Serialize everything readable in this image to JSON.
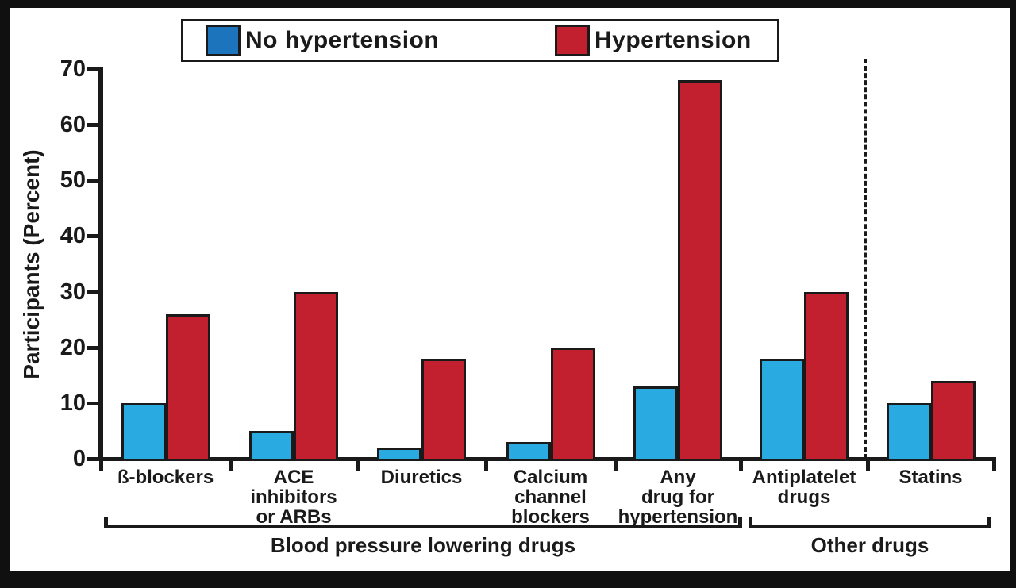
{
  "legend": {
    "items": [
      {
        "label": "No hypertension",
        "swatch_color": "#1C75BC"
      },
      {
        "label": "Hypertension",
        "swatch_color": "#C2202F"
      }
    ]
  },
  "chart_data": {
    "type": "bar",
    "title": "",
    "xlabel": "",
    "ylabel": "Participants (Percent)",
    "ylim": [
      0,
      70
    ],
    "yticks": [
      0,
      10,
      20,
      30,
      40,
      50,
      60,
      70
    ],
    "grid": false,
    "legend_position": "top",
    "categories": [
      "ß-blockers",
      "ACE\ninhibitors\nor ARBs",
      "Diuretics",
      "Calcium\nchannel\nblockers",
      "Any\ndrug for\nhypertension",
      "Antiplatelet\ndrugs",
      "Statins"
    ],
    "series": [
      {
        "name": "No hypertension",
        "color": "#29ABE2",
        "values": [
          10,
          5,
          2,
          3,
          13,
          18,
          10
        ]
      },
      {
        "name": "Hypertension",
        "color": "#C2202F",
        "values": [
          26,
          30,
          18,
          20,
          68,
          30,
          14
        ]
      }
    ],
    "group_brackets": [
      {
        "label": "Blood pressure lowering drugs",
        "from_category": 0,
        "to_category": 4
      },
      {
        "label": "Other drugs",
        "from_category": 5,
        "to_category": 6
      }
    ],
    "dashed_separator_before_category": 6,
    "colors": {
      "axis": "#1A1A1A",
      "frame": "#101010",
      "background": "#FFFFFF"
    }
  }
}
